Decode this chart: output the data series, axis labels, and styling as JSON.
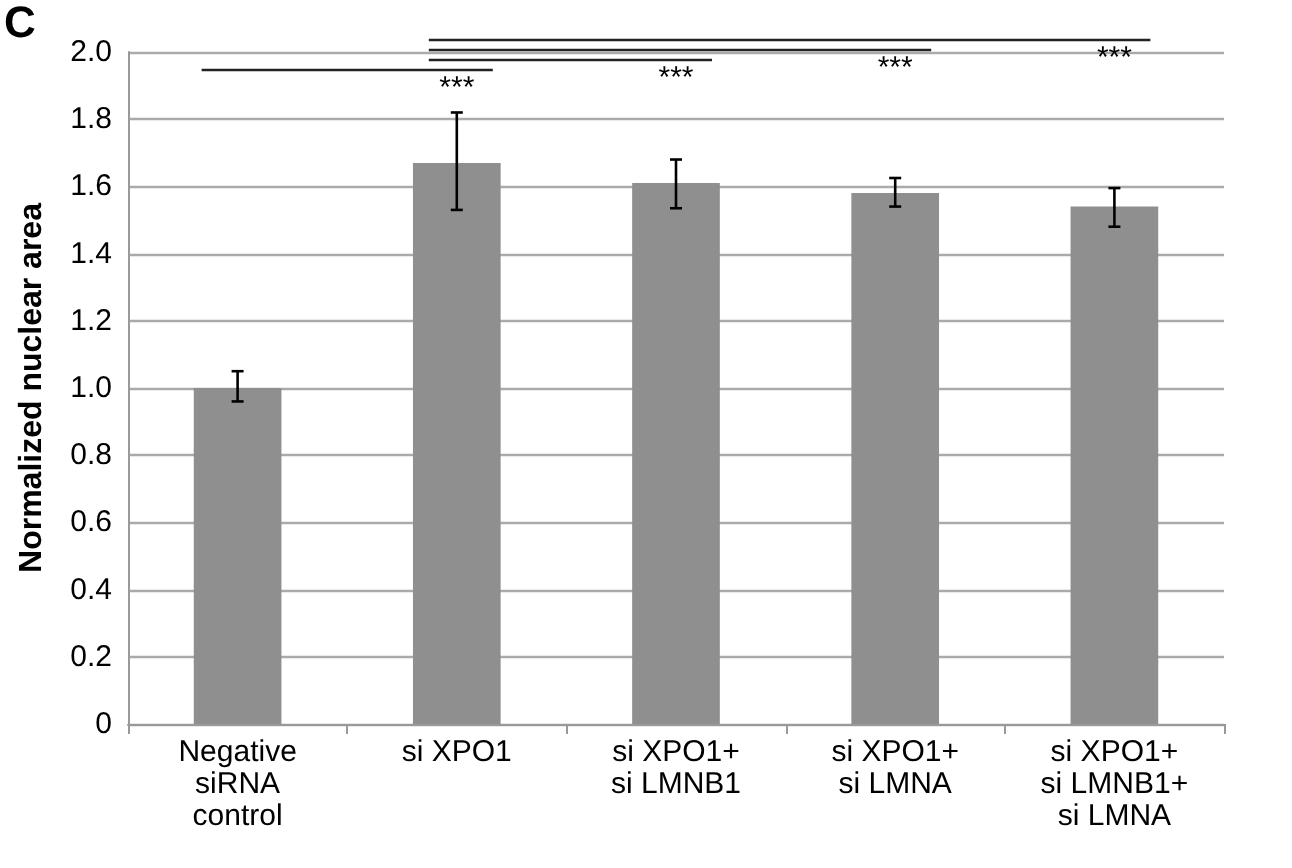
{
  "chart_data": {
    "type": "bar",
    "ylabel": "Normalized nuclear area",
    "categories": [
      "Negative\nsiRNA\ncontrol",
      "si XPO1",
      "si XPO1+\nsi LMNB1",
      "si XPO1+\nsi LMNA",
      "si XPO1+\nsi LMNB1+\nsi LMNA"
    ],
    "values": [
      1.0,
      1.67,
      1.61,
      1.58,
      1.54
    ],
    "errors": [
      [
        0.96,
        1.05
      ],
      [
        1.53,
        1.82
      ],
      [
        1.535,
        1.68
      ],
      [
        1.54,
        1.625
      ],
      [
        1.48,
        1.595
      ]
    ],
    "color": "#8f8f8f",
    "ylim": [
      0,
      2.0
    ],
    "yticks": [
      {
        "value": 0,
        "label": "0"
      },
      {
        "value": 0.2,
        "label": "0.2"
      },
      {
        "value": 0.4,
        "label": "0.4"
      },
      {
        "value": 0.6,
        "label": "0.6"
      },
      {
        "value": 0.8,
        "label": "0.8"
      },
      {
        "value": 1.0,
        "label": "1.0"
      },
      {
        "value": 1.2,
        "label": "1.2"
      },
      {
        "value": 1.4,
        "label": "1.4"
      },
      {
        "value": 1.6,
        "label": "1.6"
      },
      {
        "value": 1.8,
        "label": "1.8"
      },
      {
        "value": 2.0,
        "label": "2.0"
      }
    ],
    "grid": "y",
    "annotations": [
      "C",
      "***",
      "***",
      "***",
      "***"
    ]
  }
}
